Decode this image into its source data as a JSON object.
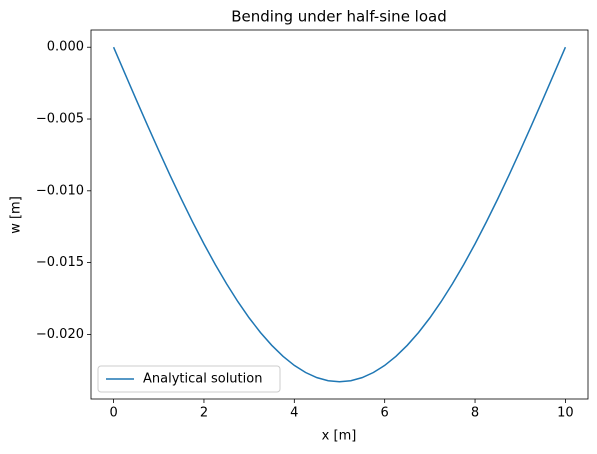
{
  "chart_data": {
    "type": "line",
    "title": "Bending under half-sine load",
    "xlabel": "x [m]",
    "ylabel": "w [m]",
    "x": [
      0,
      0.25,
      0.5,
      0.75,
      1,
      1.25,
      1.5,
      1.75,
      2,
      2.25,
      2.5,
      2.75,
      3,
      3.25,
      3.5,
      3.75,
      4,
      4.25,
      4.5,
      4.75,
      5,
      5.25,
      5.5,
      5.75,
      6,
      6.25,
      6.5,
      6.75,
      7,
      7.25,
      7.5,
      7.75,
      8,
      8.25,
      8.5,
      8.75,
      9,
      9.25,
      9.5,
      9.75,
      10
    ],
    "series": [
      {
        "name": "Analytical solution",
        "color": "#1f77b4",
        "values": [
          0,
          -0.001828,
          -0.003645,
          -0.005439,
          -0.0072,
          -0.008917,
          -0.010578,
          -0.012174,
          -0.013695,
          -0.015132,
          -0.016476,
          -0.017717,
          -0.01885,
          -0.019867,
          -0.02076,
          -0.021526,
          -0.02216,
          -0.022656,
          -0.023013,
          -0.023228,
          -0.0233,
          -0.023228,
          -0.023013,
          -0.022656,
          -0.02216,
          -0.021526,
          -0.02076,
          -0.019867,
          -0.01885,
          -0.017717,
          -0.016476,
          -0.015132,
          -0.013695,
          -0.012174,
          -0.010578,
          -0.008917,
          -0.0072,
          -0.005439,
          -0.003645,
          -0.001828,
          0
        ]
      }
    ],
    "xlim": [
      -0.5,
      10.5
    ],
    "ylim": [
      -0.0245,
      0.0012
    ],
    "xticks": [
      0,
      2,
      4,
      6,
      8,
      10
    ],
    "yticks": [
      {
        "value": 0,
        "label": "0.000"
      },
      {
        "value": -0.005,
        "label": "−0.005"
      },
      {
        "value": -0.01,
        "label": "−0.010"
      },
      {
        "value": -0.015,
        "label": "−0.015"
      },
      {
        "value": -0.02,
        "label": "−0.020"
      }
    ],
    "legend": "lower left",
    "grid": false
  }
}
